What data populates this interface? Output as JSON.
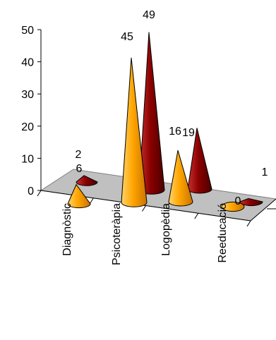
{
  "chart_data": {
    "type": "bar",
    "shape": "cone-3d",
    "categories": [
      "Diagnòstic",
      "Psicoteràpia",
      "Logopèdia",
      "Reeducació"
    ],
    "series": [
      {
        "values": [
          6,
          45,
          16,
          0
        ],
        "color": "#ffa500"
      },
      {
        "values": [
          2,
          49,
          19,
          1
        ],
        "color": "#8b0000"
      }
    ],
    "y_ticks": [
      "0",
      "10",
      "20",
      "30",
      "40",
      "50"
    ],
    "ylim": [
      0,
      50
    ],
    "data_labels": [
      [
        "6",
        "45",
        "16",
        "0"
      ],
      [
        "2",
        "49",
        "19",
        "1"
      ]
    ],
    "title": "",
    "xlabel": "",
    "ylabel": ""
  }
}
